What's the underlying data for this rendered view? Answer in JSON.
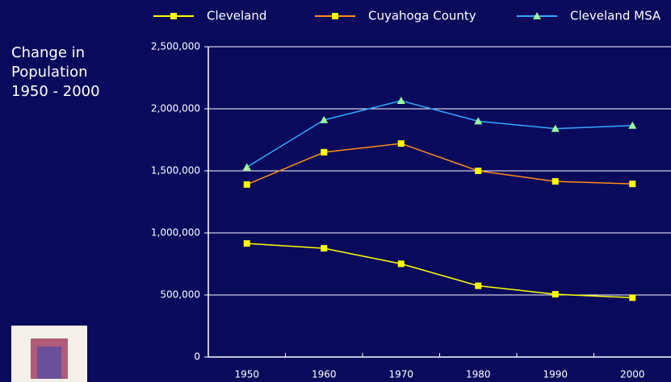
{
  "chart_data": {
    "type": "line",
    "title": "Change in Population 1950 - 2000",
    "categories": [
      "1950",
      "1960",
      "1970",
      "1980",
      "1990",
      "2000"
    ],
    "series": [
      {
        "name": "Cleveland",
        "color": "#ffff00",
        "marker": "square",
        "marker_color": "#ffff00",
        "values": [
          915000,
          876000,
          751000,
          574000,
          506000,
          478000
        ]
      },
      {
        "name": "Cuyahoga County",
        "color": "#ff8c1a",
        "marker": "square",
        "marker_color": "#ffff00",
        "values": [
          1390000,
          1650000,
          1720000,
          1500000,
          1415000,
          1395000
        ]
      },
      {
        "name": "Cleveland MSA",
        "color": "#33aaff",
        "marker": "triangle",
        "marker_color": "#99ff99",
        "values": [
          1530000,
          1910000,
          2065000,
          1900000,
          1840000,
          1865000
        ]
      }
    ],
    "ylim": [
      0,
      2500000
    ],
    "yticks": [
      0,
      {
        "value": 500000,
        "label": "500,000"
      },
      {
        "value": 1000000,
        "label": "1,000,000"
      },
      {
        "value": 1500000,
        "label": "1,500,000"
      },
      {
        "value": 2000000,
        "label": "2,000,000"
      },
      {
        "value": 2500000,
        "label": "2,500,000"
      }
    ],
    "grid": true
  }
}
